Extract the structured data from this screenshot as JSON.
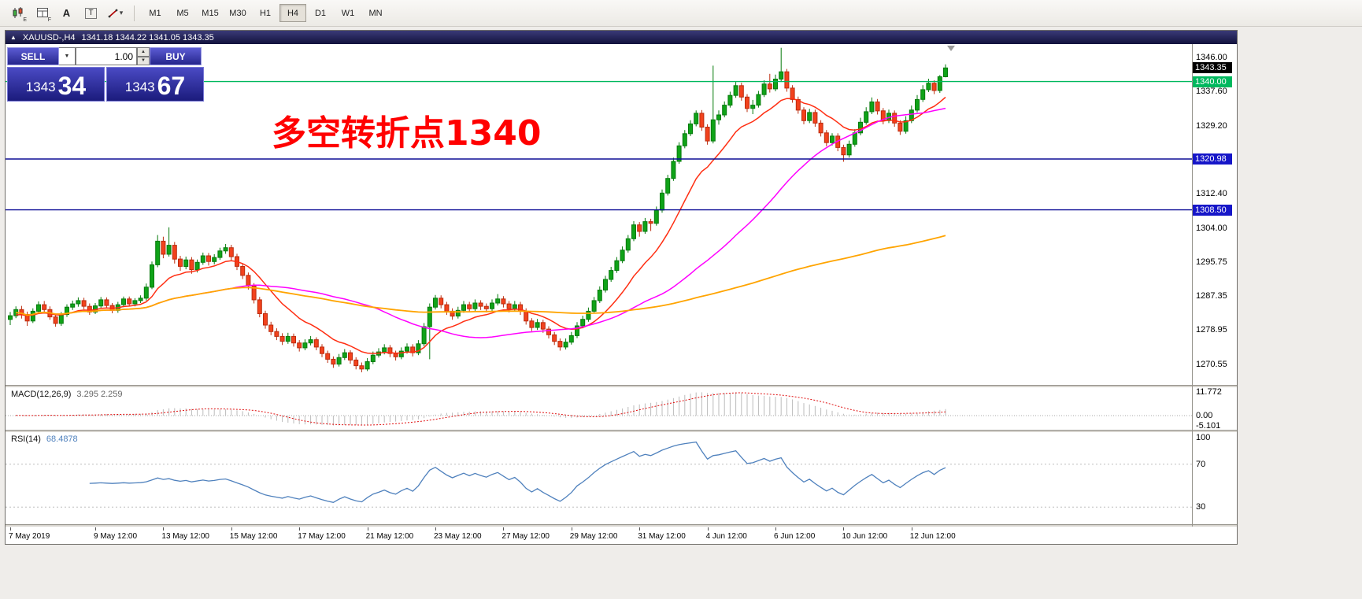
{
  "toolbar": {
    "icons": [
      {
        "name": "candlestick-chart-icon",
        "sub": "E"
      },
      {
        "name": "chart-window-icon",
        "sub": "F"
      },
      {
        "name": "cursor-tool-icon",
        "label": "A"
      },
      {
        "name": "text-tool-icon",
        "label": "T"
      },
      {
        "name": "line-style-tool-icon",
        "dropdown": "▾"
      }
    ],
    "timeframes": [
      "M1",
      "M5",
      "M15",
      "M30",
      "H1",
      "H4",
      "D1",
      "W1",
      "MN"
    ],
    "active_timeframe": "H4"
  },
  "chart_header": {
    "collapse_icon": "▲",
    "symbol": "XAUUSD-,H4",
    "ohlc": "1341.18 1344.22 1341.05 1343.35"
  },
  "trade_panel": {
    "sell_label": "SELL",
    "buy_label": "BUY",
    "lot_value": "1.00",
    "dropdown_icon": "▼",
    "spin_up_icon": "▲",
    "spin_down_icon": "▼",
    "bid": {
      "prefix": "1343",
      "pips": "34"
    },
    "ask": {
      "prefix": "1343",
      "pips": "67"
    }
  },
  "annotation": {
    "text": "多空转折点1340",
    "color": "#ff0000"
  },
  "price_scale": {
    "ticks": [
      "1346.00",
      "1337.60",
      "1329.20",
      "1312.40",
      "1304.00",
      "1295.75",
      "1287.35",
      "1278.95",
      "1270.55"
    ],
    "badges": [
      {
        "text": "1343.35",
        "type": "last-price",
        "bg": "#000000"
      },
      {
        "text": "1340.00",
        "type": "hline",
        "bg": "#00b85e"
      },
      {
        "text": "1320.98",
        "type": "hline",
        "bg": "#1616c8"
      },
      {
        "text": "1308.50",
        "type": "hline",
        "bg": "#1616c8"
      }
    ]
  },
  "hlines": [
    {
      "price": 1340.0,
      "color": "#00b85e"
    },
    {
      "price": 1320.98,
      "color": "#0e0e96"
    },
    {
      "price": 1308.5,
      "color": "#0e0e96"
    }
  ],
  "macd_panel": {
    "name": "MACD(12,26,9)",
    "values": "3.295 2.259",
    "scale": [
      "11.772",
      "0.00",
      "-5.101"
    ]
  },
  "rsi_panel": {
    "name": "RSI(14)",
    "value": "68.4878",
    "scale": [
      "100",
      "70",
      "30"
    ]
  },
  "time_axis": [
    {
      "label": "7 May 2019",
      "i": 0
    },
    {
      "label": "9 May 12:00",
      "i": 15
    },
    {
      "label": "13 May 12:00",
      "i": 27
    },
    {
      "label": "15 May 12:00",
      "i": 39
    },
    {
      "label": "17 May 12:00",
      "i": 51
    },
    {
      "label": "21 May 12:00",
      "i": 63
    },
    {
      "label": "23 May 12:00",
      "i": 75
    },
    {
      "label": "27 May 12:00",
      "i": 87
    },
    {
      "label": "29 May 12:00",
      "i": 99
    },
    {
      "label": "31 May 12:00",
      "i": 111
    },
    {
      "label": "4 Jun 12:00",
      "i": 123
    },
    {
      "label": "6 Jun 12:00",
      "i": 135
    },
    {
      "label": "10 Jun 12:00",
      "i": 147
    },
    {
      "label": "12 Jun 12:00",
      "i": 159
    }
  ],
  "chart_data": {
    "type": "candlestick",
    "symbol": "XAUUSD",
    "timeframe": "H4",
    "ylim": [
      1265.5,
      1349.2
    ],
    "colors": {
      "up": "#0fa318",
      "up_border": "#067a0c",
      "down": "#f2421d",
      "down_border": "#bb2c0e"
    },
    "overlays": [
      {
        "name": "ma-fast",
        "type": "ema",
        "period": 13,
        "color": "#ff2e12",
        "width": 1.5
      },
      {
        "name": "ma-mid",
        "type": "sma",
        "period": 40,
        "color": "#ff00ff",
        "width": 1.5
      },
      {
        "name": "ma-slow",
        "type": "sma",
        "period": 130,
        "color": "#ffa400",
        "width": 1.8
      }
    ],
    "macd": {
      "fast": 12,
      "slow": 26,
      "signal": 9,
      "hist_color": "#bbbbbb",
      "signal_color": "#e01010"
    },
    "rsi": {
      "period": 14,
      "color": "#4f81bd",
      "levels": [
        70,
        30
      ]
    },
    "ohlc": [
      [
        1281.6,
        1283.4,
        1280.2,
        1282.5
      ],
      [
        1282.5,
        1284.8,
        1281.9,
        1284.0
      ],
      [
        1284.0,
        1284.9,
        1281.8,
        1282.8
      ],
      [
        1282.8,
        1283.5,
        1280.0,
        1281.2
      ],
      [
        1281.2,
        1284.3,
        1280.7,
        1283.6
      ],
      [
        1283.6,
        1286.0,
        1283.0,
        1285.2
      ],
      [
        1285.2,
        1286.1,
        1283.3,
        1284.0
      ],
      [
        1284.0,
        1284.8,
        1281.5,
        1282.2
      ],
      [
        1282.2,
        1283.0,
        1279.8,
        1280.6
      ],
      [
        1280.6,
        1283.4,
        1280.0,
        1282.8
      ],
      [
        1282.8,
        1285.3,
        1282.2,
        1284.6
      ],
      [
        1284.6,
        1286.2,
        1283.9,
        1285.4
      ],
      [
        1285.4,
        1287.0,
        1284.7,
        1286.2
      ],
      [
        1286.2,
        1286.9,
        1284.1,
        1284.8
      ],
      [
        1284.8,
        1285.5,
        1282.7,
        1283.4
      ],
      [
        1283.4,
        1285.6,
        1282.9,
        1284.9
      ],
      [
        1284.9,
        1287.1,
        1284.3,
        1286.4
      ],
      [
        1286.4,
        1287.0,
        1284.4,
        1285.0
      ],
      [
        1285.0,
        1285.6,
        1283.1,
        1283.8
      ],
      [
        1283.8,
        1285.9,
        1283.2,
        1285.2
      ],
      [
        1285.2,
        1287.2,
        1284.6,
        1286.6
      ],
      [
        1286.6,
        1287.2,
        1284.8,
        1285.4
      ],
      [
        1285.4,
        1286.8,
        1284.8,
        1286.2
      ],
      [
        1286.2,
        1287.5,
        1285.6,
        1286.8
      ],
      [
        1286.8,
        1290.4,
        1286.2,
        1289.5
      ],
      [
        1289.5,
        1295.8,
        1289.0,
        1295.0
      ],
      [
        1295.0,
        1302.3,
        1294.4,
        1300.8
      ],
      [
        1300.8,
        1301.9,
        1296.6,
        1297.6
      ],
      [
        1297.6,
        1304.2,
        1297.0,
        1299.8
      ],
      [
        1299.8,
        1300.6,
        1295.3,
        1296.4
      ],
      [
        1296.4,
        1297.2,
        1293.5,
        1294.6
      ],
      [
        1294.6,
        1297.0,
        1293.9,
        1296.2
      ],
      [
        1296.2,
        1296.9,
        1292.8,
        1293.8
      ],
      [
        1293.8,
        1296.3,
        1293.1,
        1295.6
      ],
      [
        1295.6,
        1298.0,
        1295.0,
        1297.2
      ],
      [
        1297.2,
        1297.9,
        1294.8,
        1295.8
      ],
      [
        1295.8,
        1297.6,
        1295.1,
        1296.8
      ],
      [
        1296.8,
        1299.2,
        1296.2,
        1298.4
      ],
      [
        1298.4,
        1300.1,
        1297.7,
        1299.2
      ],
      [
        1299.2,
        1299.9,
        1296.1,
        1297.0
      ],
      [
        1297.0,
        1297.7,
        1293.7,
        1294.6
      ],
      [
        1294.6,
        1295.3,
        1291.5,
        1292.4
      ],
      [
        1292.4,
        1293.1,
        1288.9,
        1289.8
      ],
      [
        1289.8,
        1290.5,
        1285.5,
        1286.4
      ],
      [
        1286.4,
        1287.1,
        1282.1,
        1283.0
      ],
      [
        1283.0,
        1283.7,
        1279.3,
        1280.2
      ],
      [
        1280.2,
        1281.0,
        1277.7,
        1278.6
      ],
      [
        1278.6,
        1279.4,
        1276.5,
        1277.4
      ],
      [
        1277.4,
        1278.2,
        1275.3,
        1276.2
      ],
      [
        1276.2,
        1278.3,
        1275.6,
        1277.4
      ],
      [
        1277.4,
        1278.1,
        1274.9,
        1275.8
      ],
      [
        1275.8,
        1276.5,
        1273.7,
        1274.6
      ],
      [
        1274.6,
        1276.7,
        1274.0,
        1275.8
      ],
      [
        1275.8,
        1277.5,
        1275.2,
        1276.6
      ],
      [
        1276.6,
        1277.2,
        1274.0,
        1274.8
      ],
      [
        1274.8,
        1275.5,
        1272.3,
        1273.2
      ],
      [
        1273.2,
        1273.9,
        1270.9,
        1271.8
      ],
      [
        1271.8,
        1272.5,
        1269.7,
        1270.6
      ],
      [
        1270.6,
        1273.1,
        1270.0,
        1272.2
      ],
      [
        1272.2,
        1274.3,
        1271.6,
        1273.4
      ],
      [
        1273.4,
        1274.0,
        1270.7,
        1271.6
      ],
      [
        1271.6,
        1272.3,
        1269.3,
        1270.2
      ],
      [
        1270.2,
        1271.0,
        1268.6,
        1269.4
      ],
      [
        1269.4,
        1272.1,
        1268.9,
        1271.2
      ],
      [
        1271.2,
        1273.7,
        1270.6,
        1272.8
      ],
      [
        1272.8,
        1274.5,
        1272.2,
        1273.6
      ],
      [
        1273.6,
        1275.5,
        1273.0,
        1274.6
      ],
      [
        1274.6,
        1275.3,
        1272.3,
        1273.2
      ],
      [
        1273.2,
        1273.9,
        1271.5,
        1272.4
      ],
      [
        1272.4,
        1274.7,
        1271.8,
        1273.8
      ],
      [
        1273.8,
        1275.7,
        1273.2,
        1274.8
      ],
      [
        1274.8,
        1275.5,
        1272.5,
        1273.4
      ],
      [
        1273.4,
        1276.5,
        1272.8,
        1275.6
      ],
      [
        1275.6,
        1280.7,
        1275.0,
        1279.8
      ],
      [
        1279.8,
        1285.5,
        1271.8,
        1284.6
      ],
      [
        1284.6,
        1287.6,
        1284.0,
        1286.8
      ],
      [
        1286.8,
        1287.5,
        1284.3,
        1285.2
      ],
      [
        1285.2,
        1285.9,
        1282.7,
        1283.6
      ],
      [
        1283.6,
        1284.3,
        1281.5,
        1282.4
      ],
      [
        1282.4,
        1284.7,
        1281.8,
        1283.8
      ],
      [
        1283.8,
        1286.1,
        1283.2,
        1285.2
      ],
      [
        1285.2,
        1285.9,
        1283.3,
        1284.2
      ],
      [
        1284.2,
        1286.5,
        1283.6,
        1285.6
      ],
      [
        1285.6,
        1286.3,
        1283.9,
        1284.8
      ],
      [
        1284.8,
        1285.5,
        1283.3,
        1284.2
      ],
      [
        1284.2,
        1286.5,
        1283.6,
        1285.6
      ],
      [
        1285.6,
        1287.8,
        1285.0,
        1286.6
      ],
      [
        1286.6,
        1287.3,
        1284.5,
        1285.4
      ],
      [
        1285.4,
        1286.1,
        1283.3,
        1284.2
      ],
      [
        1284.2,
        1286.1,
        1283.6,
        1285.2
      ],
      [
        1285.2,
        1285.9,
        1282.7,
        1283.6
      ],
      [
        1283.6,
        1284.3,
        1280.3,
        1281.2
      ],
      [
        1281.2,
        1281.9,
        1278.7,
        1279.6
      ],
      [
        1279.6,
        1281.7,
        1279.0,
        1280.8
      ],
      [
        1280.8,
        1281.5,
        1278.3,
        1279.2
      ],
      [
        1279.2,
        1279.9,
        1276.9,
        1277.8
      ],
      [
        1277.8,
        1278.5,
        1275.3,
        1276.2
      ],
      [
        1276.2,
        1276.9,
        1273.9,
        1274.8
      ],
      [
        1274.8,
        1276.9,
        1274.2,
        1276.0
      ],
      [
        1276.0,
        1278.5,
        1275.4,
        1277.6
      ],
      [
        1277.6,
        1280.9,
        1277.0,
        1280.0
      ],
      [
        1280.0,
        1282.5,
        1279.4,
        1281.6
      ],
      [
        1281.6,
        1284.5,
        1281.0,
        1283.6
      ],
      [
        1283.6,
        1287.1,
        1283.0,
        1286.2
      ],
      [
        1286.2,
        1289.7,
        1285.6,
        1288.8
      ],
      [
        1288.8,
        1292.3,
        1288.2,
        1291.4
      ],
      [
        1291.4,
        1294.5,
        1290.8,
        1293.6
      ],
      [
        1293.6,
        1296.9,
        1293.0,
        1296.0
      ],
      [
        1296.0,
        1299.5,
        1295.4,
        1298.6
      ],
      [
        1298.6,
        1302.3,
        1298.0,
        1301.4
      ],
      [
        1301.4,
        1305.7,
        1300.8,
        1304.8
      ],
      [
        1304.8,
        1305.5,
        1301.9,
        1303.2
      ],
      [
        1303.2,
        1306.5,
        1302.6,
        1305.6
      ],
      [
        1305.6,
        1306.3,
        1303.3,
        1305.2
      ],
      [
        1305.2,
        1309.3,
        1304.6,
        1308.4
      ],
      [
        1308.4,
        1313.5,
        1307.8,
        1312.6
      ],
      [
        1312.6,
        1317.1,
        1312.0,
        1316.2
      ],
      [
        1316.2,
        1321.3,
        1315.6,
        1320.4
      ],
      [
        1320.4,
        1325.1,
        1319.8,
        1324.2
      ],
      [
        1324.2,
        1328.1,
        1323.6,
        1327.2
      ],
      [
        1327.2,
        1330.5,
        1326.6,
        1329.6
      ],
      [
        1329.6,
        1332.9,
        1329.0,
        1332.2
      ],
      [
        1332.2,
        1333.0,
        1327.9,
        1328.8
      ],
      [
        1328.8,
        1329.5,
        1324.5,
        1325.4
      ],
      [
        1325.4,
        1343.9,
        1324.8,
        1330.6
      ],
      [
        1330.6,
        1332.9,
        1329.4,
        1331.8
      ],
      [
        1331.8,
        1335.1,
        1331.2,
        1334.2
      ],
      [
        1334.2,
        1337.5,
        1333.6,
        1336.6
      ],
      [
        1336.6,
        1339.9,
        1336.0,
        1339.0
      ],
      [
        1339.0,
        1339.7,
        1335.3,
        1336.2
      ],
      [
        1336.2,
        1336.9,
        1332.5,
        1333.4
      ],
      [
        1333.4,
        1335.5,
        1332.0,
        1334.2
      ],
      [
        1334.2,
        1337.7,
        1333.6,
        1336.8
      ],
      [
        1336.8,
        1340.3,
        1336.2,
        1339.4
      ],
      [
        1339.4,
        1341.9,
        1337.3,
        1338.2
      ],
      [
        1338.2,
        1341.7,
        1337.6,
        1340.6
      ],
      [
        1340.6,
        1348.3,
        1339.9,
        1342.4
      ],
      [
        1342.4,
        1343.1,
        1337.5,
        1338.4
      ],
      [
        1338.4,
        1339.1,
        1334.8,
        1335.6
      ],
      [
        1335.6,
        1336.3,
        1332.1,
        1333.0
      ],
      [
        1333.0,
        1333.7,
        1329.5,
        1330.4
      ],
      [
        1330.4,
        1333.3,
        1329.8,
        1332.4
      ],
      [
        1332.4,
        1333.1,
        1328.9,
        1329.8
      ],
      [
        1329.8,
        1330.5,
        1326.5,
        1327.4
      ],
      [
        1327.4,
        1328.1,
        1324.1,
        1325.0
      ],
      [
        1325.0,
        1327.3,
        1324.3,
        1326.6
      ],
      [
        1326.6,
        1327.3,
        1322.9,
        1323.8
      ],
      [
        1323.8,
        1324.5,
        1320.3,
        1322.0
      ],
      [
        1322.0,
        1325.5,
        1321.3,
        1324.6
      ],
      [
        1324.6,
        1328.3,
        1324.0,
        1327.4
      ],
      [
        1327.4,
        1331.1,
        1326.8,
        1330.0
      ],
      [
        1330.0,
        1333.7,
        1329.4,
        1332.6
      ],
      [
        1332.6,
        1336.1,
        1332.0,
        1335.0
      ],
      [
        1335.0,
        1335.7,
        1331.9,
        1332.8
      ],
      [
        1332.8,
        1333.5,
        1329.5,
        1330.4
      ],
      [
        1330.4,
        1333.1,
        1329.8,
        1332.2
      ],
      [
        1332.2,
        1332.9,
        1328.9,
        1329.8
      ],
      [
        1329.8,
        1330.5,
        1326.9,
        1327.8
      ],
      [
        1327.8,
        1331.5,
        1327.2,
        1330.4
      ],
      [
        1330.4,
        1334.1,
        1329.8,
        1333.0
      ],
      [
        1333.0,
        1336.7,
        1332.4,
        1335.6
      ],
      [
        1335.6,
        1339.1,
        1335.0,
        1338.0
      ],
      [
        1338.0,
        1340.7,
        1337.4,
        1339.6
      ],
      [
        1339.6,
        1340.3,
        1336.9,
        1337.8
      ],
      [
        1337.8,
        1341.6,
        1337.2,
        1341.18
      ],
      [
        1341.18,
        1344.22,
        1341.05,
        1343.35
      ]
    ]
  }
}
